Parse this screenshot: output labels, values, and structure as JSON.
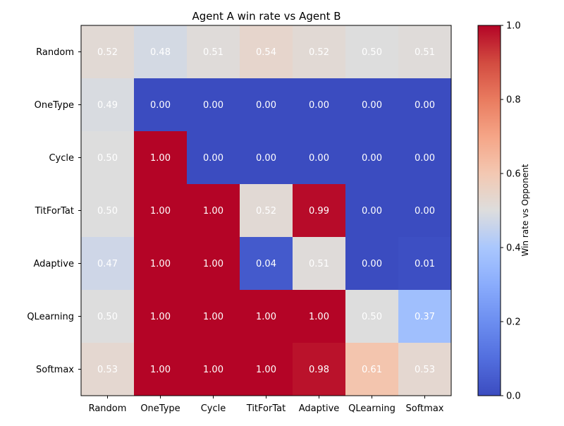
{
  "chart_data": {
    "type": "heatmap",
    "title": "Agent A win rate vs Agent B",
    "xlabel": "",
    "ylabel": "",
    "rows": [
      "Random",
      "OneType",
      "Cycle",
      "TitForTat",
      "Adaptive",
      "QLearning",
      "Softmax"
    ],
    "columns": [
      "Random",
      "OneType",
      "Cycle",
      "TitForTat",
      "Adaptive",
      "QLearning",
      "Softmax"
    ],
    "values": [
      [
        0.52,
        0.48,
        0.51,
        0.54,
        0.52,
        0.5,
        0.51
      ],
      [
        0.49,
        0.0,
        0.0,
        0.0,
        0.0,
        0.0,
        0.0
      ],
      [
        0.5,
        1.0,
        0.0,
        0.0,
        0.0,
        0.0,
        0.0
      ],
      [
        0.5,
        1.0,
        1.0,
        0.52,
        0.99,
        0.0,
        0.0
      ],
      [
        0.47,
        1.0,
        1.0,
        0.04,
        0.51,
        0.0,
        0.01
      ],
      [
        0.5,
        1.0,
        1.0,
        1.0,
        1.0,
        0.5,
        0.37
      ],
      [
        0.53,
        1.0,
        1.0,
        1.0,
        0.98,
        0.61,
        0.53
      ]
    ],
    "value_format": "0.00",
    "colorbar": {
      "label": "Win rate vs Opponent",
      "range": [
        0.0,
        1.0
      ],
      "ticks": [
        "0.0",
        "0.2",
        "0.4",
        "0.6",
        "0.8",
        "1.0"
      ],
      "colormap": "coolwarm"
    },
    "grid": false,
    "legend": "colorbar right"
  }
}
